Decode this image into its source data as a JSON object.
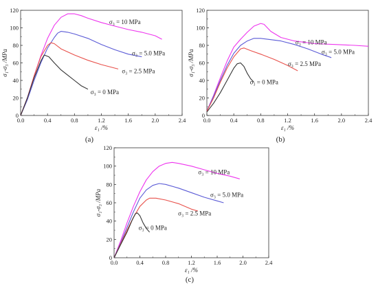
{
  "chart_data": [
    {
      "type": "line",
      "panel_label": "(a)",
      "xlabel": "ε₁ /%",
      "ylabel": "σ₁-σ₃ /MPa",
      "xlim": [
        0,
        2.4
      ],
      "ylim": [
        0,
        120
      ],
      "xticks": [
        "0.0",
        "0.4",
        "0.8",
        "1.2",
        "1.6",
        "2.0",
        "2.4"
      ],
      "yticks": [
        "0",
        "20",
        "40",
        "60",
        "80",
        "100",
        "120"
      ],
      "grid": false,
      "series": [
        {
          "name": "σ₃ = 10 MPa",
          "color": "#ee33ee",
          "label_pos": [
            1.55,
            106.5
          ],
          "points": [
            [
              0,
              0
            ],
            [
              0.1,
              20
            ],
            [
              0.2,
              45
            ],
            [
              0.3,
              68
            ],
            [
              0.4,
              88
            ],
            [
              0.5,
              103
            ],
            [
              0.6,
              112
            ],
            [
              0.7,
              116
            ],
            [
              0.8,
              116
            ],
            [
              0.9,
              114
            ],
            [
              1.0,
              111
            ],
            [
              1.2,
              106
            ],
            [
              1.4,
              102
            ],
            [
              1.6,
              98
            ],
            [
              1.8,
              95
            ],
            [
              2.0,
              91
            ],
            [
              2.1,
              87
            ]
          ]
        },
        {
          "name": "σ₃ = 5.0 MPa",
          "color": "#5a5ad6",
          "label_pos": [
            1.9,
            71
          ],
          "points": [
            [
              0,
              0
            ],
            [
              0.1,
              18
            ],
            [
              0.2,
              40
            ],
            [
              0.3,
              60
            ],
            [
              0.4,
              77
            ],
            [
              0.5,
              89
            ],
            [
              0.55,
              94
            ],
            [
              0.6,
              96
            ],
            [
              0.7,
              95
            ],
            [
              0.8,
              93
            ],
            [
              1.0,
              88
            ],
            [
              1.2,
              81
            ],
            [
              1.4,
              75
            ],
            [
              1.6,
              70
            ],
            [
              1.8,
              67
            ]
          ]
        },
        {
          "name": "σ₃ = 2.5 MPa",
          "color": "#e8504a",
          "label_pos": [
            1.75,
            50.5
          ],
          "points": [
            [
              0,
              0
            ],
            [
              0.1,
              20
            ],
            [
              0.2,
              45
            ],
            [
              0.3,
              67
            ],
            [
              0.4,
              80
            ],
            [
              0.45,
              83
            ],
            [
              0.5,
              82
            ],
            [
              0.6,
              76
            ],
            [
              0.8,
              69
            ],
            [
              1.0,
              63
            ],
            [
              1.2,
              58
            ],
            [
              1.45,
              53
            ]
          ]
        },
        {
          "name": "σ₃ = 0 MPa",
          "color": "#333333",
          "label_pos": [
            1.25,
            26.5
          ],
          "points": [
            [
              0,
              0
            ],
            [
              0.1,
              20
            ],
            [
              0.2,
              43
            ],
            [
              0.3,
              62
            ],
            [
              0.35,
              69
            ],
            [
              0.42,
              67
            ],
            [
              0.5,
              60
            ],
            [
              0.6,
              52
            ],
            [
              0.7,
              46
            ],
            [
              0.8,
              40
            ],
            [
              0.9,
              34
            ],
            [
              1.0,
              30
            ]
          ]
        }
      ]
    },
    {
      "type": "line",
      "panel_label": "(b)",
      "xlabel": "ε₁ /%",
      "ylabel": "σ₁-σ₃ /MPa",
      "xlim": [
        0,
        2.4
      ],
      "ylim": [
        0,
        120
      ],
      "xticks": [
        "0.0",
        "0.4",
        "0.8",
        "1.2",
        "1.6",
        "2.0",
        "2.4"
      ],
      "yticks": [
        "0",
        "20",
        "40",
        "60",
        "80",
        "100",
        "120"
      ],
      "grid": false,
      "series": [
        {
          "name": "σ₃ = 10 MPa",
          "color": "#ee33ee",
          "label_pos": [
            1.55,
            83.5
          ],
          "points": [
            [
              0,
              5
            ],
            [
              0.1,
              23
            ],
            [
              0.2,
              43
            ],
            [
              0.3,
              62
            ],
            [
              0.4,
              78
            ],
            [
              0.5,
              87
            ],
            [
              0.6,
              95
            ],
            [
              0.7,
              102
            ],
            [
              0.8,
              105
            ],
            [
              0.85,
              104
            ],
            [
              0.95,
              96
            ],
            [
              1.1,
              89
            ],
            [
              1.3,
              85
            ],
            [
              1.6,
              82
            ],
            [
              1.9,
              81
            ],
            [
              2.2,
              80
            ],
            [
              2.4,
              79
            ]
          ]
        },
        {
          "name": "σ₃ = 5.0 MPa",
          "color": "#5a5ad6",
          "label_pos": [
            1.95,
            72.5
          ],
          "points": [
            [
              0,
              5
            ],
            [
              0.1,
              22
            ],
            [
              0.2,
              40
            ],
            [
              0.3,
              57
            ],
            [
              0.4,
              71
            ],
            [
              0.5,
              80
            ],
            [
              0.6,
              85
            ],
            [
              0.7,
              88
            ],
            [
              0.8,
              88
            ],
            [
              0.9,
              87
            ],
            [
              1.1,
              85
            ],
            [
              1.3,
              81
            ],
            [
              1.5,
              76
            ],
            [
              1.7,
              70
            ],
            [
              1.85,
              66
            ]
          ]
        },
        {
          "name": "σ₃ = 2.5 MPa",
          "color": "#e8504a",
          "label_pos": [
            1.45,
            59
          ],
          "points": [
            [
              0,
              5
            ],
            [
              0.1,
              20
            ],
            [
              0.2,
              38
            ],
            [
              0.3,
              54
            ],
            [
              0.4,
              67
            ],
            [
              0.5,
              76
            ],
            [
              0.55,
              77
            ],
            [
              0.65,
              74
            ],
            [
              0.8,
              70
            ],
            [
              1.0,
              64
            ],
            [
              1.2,
              57
            ],
            [
              1.35,
              51
            ]
          ]
        },
        {
          "name": "σ₃ = 0 MPa",
          "color": "#333333",
          "label_pos": [
            0.85,
            38
          ],
          "points": [
            [
              0,
              4
            ],
            [
              0.1,
              14
            ],
            [
              0.2,
              26
            ],
            [
              0.3,
              40
            ],
            [
              0.4,
              54
            ],
            [
              0.45,
              59
            ],
            [
              0.5,
              60
            ],
            [
              0.55,
              56
            ],
            [
              0.6,
              48
            ],
            [
              0.65,
              42
            ],
            [
              0.7,
              38
            ]
          ]
        }
      ]
    },
    {
      "type": "line",
      "panel_label": "(c)",
      "xlabel": "ε₁ /%",
      "ylabel": "σ₁-σ₃ /MPa",
      "xlim": [
        0,
        2.4
      ],
      "ylim": [
        0,
        120
      ],
      "xticks": [
        "0.0",
        "0.4",
        "0.8",
        "1.2",
        "1.6",
        "2.0",
        "2.4"
      ],
      "yticks": [
        "0",
        "20",
        "40",
        "60",
        "80",
        "100",
        "120"
      ],
      "grid": false,
      "series": [
        {
          "name": "σ₃ = 10 MPa",
          "color": "#ee33ee",
          "label_pos": [
            1.55,
            93.5
          ],
          "points": [
            [
              0,
              0
            ],
            [
              0.1,
              18
            ],
            [
              0.2,
              38
            ],
            [
              0.3,
              56
            ],
            [
              0.4,
              72
            ],
            [
              0.5,
              85
            ],
            [
              0.6,
              94
            ],
            [
              0.7,
              100
            ],
            [
              0.8,
              103
            ],
            [
              0.9,
              104
            ],
            [
              1.0,
              103
            ],
            [
              1.2,
              100
            ],
            [
              1.4,
              96
            ],
            [
              1.6,
              92
            ],
            [
              1.8,
              89
            ],
            [
              1.95,
              86
            ]
          ]
        },
        {
          "name": "σ₃ = 5.0 MPa",
          "color": "#5a5ad6",
          "label_pos": [
            1.75,
            68.5
          ],
          "points": [
            [
              0,
              0
            ],
            [
              0.1,
              16
            ],
            [
              0.2,
              33
            ],
            [
              0.3,
              50
            ],
            [
              0.4,
              65
            ],
            [
              0.5,
              74
            ],
            [
              0.6,
              79
            ],
            [
              0.7,
              81
            ],
            [
              0.8,
              80
            ],
            [
              1.0,
              76
            ],
            [
              1.2,
              71
            ],
            [
              1.4,
              66
            ],
            [
              1.6,
              62
            ],
            [
              1.7,
              60
            ]
          ]
        },
        {
          "name": "σ₃ = 2.5 MPa",
          "color": "#e8504a",
          "label_pos": [
            1.25,
            48.5
          ],
          "points": [
            [
              0,
              0
            ],
            [
              0.1,
              15
            ],
            [
              0.2,
              30
            ],
            [
              0.3,
              44
            ],
            [
              0.4,
              56
            ],
            [
              0.5,
              63
            ],
            [
              0.55,
              65
            ],
            [
              0.65,
              65
            ],
            [
              0.8,
              63
            ],
            [
              1.0,
              59
            ],
            [
              1.2,
              53
            ],
            [
              1.3,
              51
            ]
          ]
        },
        {
          "name": "σ₃ = 0 MPa",
          "color": "#333333",
          "label_pos": [
            0.6,
            32.5
          ],
          "points": [
            [
              0,
              0
            ],
            [
              0.1,
              14
            ],
            [
              0.2,
              28
            ],
            [
              0.28,
              41
            ],
            [
              0.33,
              48
            ],
            [
              0.36,
              49
            ],
            [
              0.4,
              46
            ],
            [
              0.45,
              38
            ],
            [
              0.5,
              32
            ],
            [
              0.55,
              28
            ]
          ]
        }
      ]
    }
  ]
}
